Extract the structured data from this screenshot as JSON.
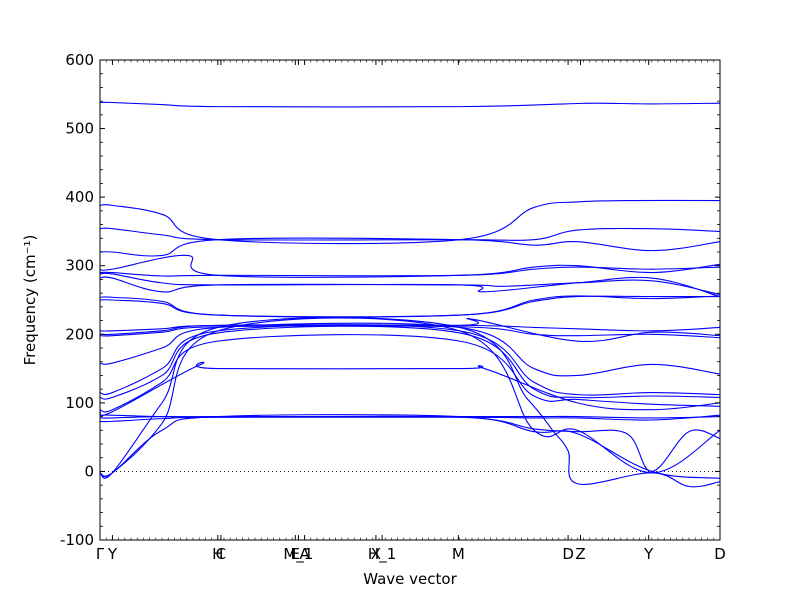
{
  "chart_data": {
    "type": "line",
    "title": "",
    "xlabel": "Wave vector",
    "ylabel": "Frequency (cm⁻¹)",
    "ylim": [
      -100,
      600
    ],
    "yticks": [
      -100,
      0,
      100,
      200,
      300,
      400,
      500,
      600
    ],
    "xlim": [
      0,
      1
    ],
    "xticks": [
      {
        "label": "Γ",
        "pos": 0.0
      },
      {
        "label": "Y",
        "pos": 0.02
      },
      {
        "label": "H",
        "pos": 0.19
      },
      {
        "label": "C",
        "pos": 0.195
      },
      {
        "label": "E",
        "pos": 0.315
      },
      {
        "label": "M_1",
        "pos": 0.32
      },
      {
        "label": "A",
        "pos": 0.33
      },
      {
        "label": "X",
        "pos": 0.445
      },
      {
        "label": "H_1",
        "pos": 0.455
      },
      {
        "label": "M",
        "pos": 0.578
      },
      {
        "label": "D",
        "pos": 0.755
      },
      {
        "label": "Z",
        "pos": 0.775
      },
      {
        "label": "Y",
        "pos": 0.885
      },
      {
        "label": "D",
        "pos": 1.0
      }
    ],
    "zero_line": {
      "y": 0,
      "style": "dotted"
    },
    "line_color": "#0000ff",
    "series": [
      {
        "x": [
          0,
          0.02,
          0.1,
          0.19,
          0.58,
          0.75,
          0.8,
          0.89,
          1.0
        ],
        "y": [
          538,
          538,
          535,
          532,
          532,
          536,
          537,
          536,
          537
        ]
      },
      {
        "x": [
          0,
          0.02,
          0.1,
          0.19,
          0.58,
          0.7,
          0.77,
          0.85,
          1.0
        ],
        "y": [
          388,
          388,
          375,
          338,
          338,
          385,
          393,
          395,
          395
        ]
      },
      {
        "x": [
          0,
          0.02,
          0.1,
          0.19,
          0.58,
          0.7,
          0.77,
          0.89,
          1.0
        ],
        "y": [
          354,
          354,
          345,
          338,
          338,
          338,
          352,
          354,
          350
        ]
      },
      {
        "x": [
          0,
          0.02,
          0.1,
          0.19,
          0.58,
          0.7,
          0.77,
          0.89,
          1.0
        ],
        "y": [
          320,
          320,
          315,
          338,
          338,
          330,
          335,
          322,
          335
        ]
      },
      {
        "x": [
          0,
          0.02,
          0.14,
          0.19,
          0.58,
          0.7,
          0.77,
          0.89,
          1.0
        ],
        "y": [
          295,
          295,
          315,
          286,
          286,
          298,
          300,
          290,
          302
        ]
      },
      {
        "x": [
          0,
          0.02,
          0.1,
          0.19,
          0.58,
          0.7,
          0.77,
          0.89,
          1.0
        ],
        "y": [
          290,
          290,
          285,
          286,
          286,
          295,
          298,
          295,
          298
        ]
      },
      {
        "x": [
          0,
          0.02,
          0.1,
          0.19,
          0.58,
          0.62,
          0.77,
          0.89,
          1.0
        ],
        "y": [
          288,
          288,
          275,
          272,
          272,
          262,
          275,
          282,
          255
        ]
      },
      {
        "x": [
          0,
          0.02,
          0.1,
          0.19,
          0.58,
          0.65,
          0.77,
          0.89,
          1.0
        ],
        "y": [
          282,
          282,
          262,
          272,
          272,
          270,
          275,
          278,
          258
        ]
      },
      {
        "x": [
          0,
          0.02,
          0.1,
          0.19,
          0.58,
          0.7,
          0.77,
          0.89,
          1.0
        ],
        "y": [
          254,
          254,
          248,
          228,
          228,
          250,
          256,
          252,
          256
        ]
      },
      {
        "x": [
          0,
          0.02,
          0.1,
          0.19,
          0.58,
          0.7,
          0.77,
          0.89,
          1.0
        ],
        "y": [
          250,
          250,
          245,
          228,
          228,
          248,
          255,
          255,
          255
        ]
      },
      {
        "x": [
          0,
          0.02,
          0.1,
          0.19,
          0.58,
          0.6,
          0.77,
          0.89,
          1.0
        ],
        "y": [
          205,
          205,
          208,
          213,
          213,
          222,
          190,
          203,
          198
        ]
      },
      {
        "x": [
          0,
          0.02,
          0.1,
          0.19,
          0.58,
          0.7,
          0.77,
          0.89,
          1.0
        ],
        "y": [
          200,
          200,
          205,
          213,
          213,
          210,
          208,
          205,
          210
        ]
      },
      {
        "x": [
          0,
          0.02,
          0.1,
          0.19,
          0.58,
          0.7,
          0.77,
          0.89,
          1.0
        ],
        "y": [
          198,
          198,
          203,
          211,
          211,
          200,
          198,
          200,
          195
        ]
      },
      {
        "x": [
          0,
          0.02,
          0.1,
          0.19,
          0.58,
          0.7,
          0.77,
          0.89,
          1.0
        ],
        "y": [
          158,
          158,
          180,
          210,
          210,
          150,
          140,
          156,
          142
        ]
      },
      {
        "x": [
          0,
          0.02,
          0.1,
          0.19,
          0.58,
          0.7,
          0.77,
          0.89,
          1.0
        ],
        "y": [
          115,
          115,
          150,
          205,
          205,
          130,
          112,
          115,
          112
        ]
      },
      {
        "x": [
          0,
          0.02,
          0.1,
          0.19,
          0.58,
          0.7,
          0.77,
          0.89,
          1.0
        ],
        "y": [
          108,
          108,
          140,
          202,
          202,
          120,
          108,
          110,
          108
        ]
      },
      {
        "x": [
          0,
          0.02,
          0.1,
          0.19,
          0.58,
          0.7,
          0.77,
          0.89,
          1.0
        ],
        "y": [
          90,
          90,
          130,
          190,
          190,
          110,
          105,
          98,
          95
        ]
      },
      {
        "x": [
          0,
          0.02,
          0.16,
          0.19,
          0.58,
          0.62,
          0.77,
          0.89,
          1.0
        ],
        "y": [
          87,
          87,
          155,
          150,
          150,
          150,
          100,
          90,
          100
        ]
      },
      {
        "x": [
          0,
          0.02,
          0.1,
          0.19,
          0.58,
          0.7,
          0.77,
          0.89,
          1.0
        ],
        "y": [
          82,
          82,
          80,
          80,
          80,
          80,
          80,
          78,
          80
        ]
      },
      {
        "x": [
          0,
          0.02,
          0.1,
          0.19,
          0.58,
          0.7,
          0.77,
          0.89,
          1.0
        ],
        "y": [
          78,
          78,
          80,
          79,
          79,
          78,
          78,
          75,
          82
        ]
      },
      {
        "x": [
          0,
          0.02,
          0.1,
          0.19,
          0.58,
          0.7,
          0.77,
          0.85,
          0.89,
          0.95,
          1.0
        ],
        "y": [
          73,
          73,
          77,
          79,
          79,
          62,
          58,
          55,
          0,
          58,
          48
        ]
      },
      {
        "x": [
          0,
          0.02,
          0.1,
          0.19,
          0.58,
          0.69,
          0.73,
          0.755,
          0.77,
          0.89,
          0.95,
          1.0
        ],
        "y": [
          -2,
          -2,
          100,
          210,
          210,
          105,
          60,
          30,
          -18,
          -2,
          -22,
          -15
        ]
      },
      {
        "x": [
          0,
          0.02,
          0.1,
          0.19,
          0.58,
          0.7,
          0.77,
          0.89,
          1.0
        ],
        "y": [
          -2,
          -2,
          70,
          205,
          205,
          60,
          60,
          -2,
          60
        ]
      },
      {
        "x": [
          0,
          0.02,
          0.1,
          0.19,
          0.58,
          0.7,
          0.77,
          0.89,
          1.0
        ],
        "y": [
          -2,
          -2,
          60,
          80,
          80,
          58,
          55,
          0,
          -10
        ]
      }
    ]
  }
}
